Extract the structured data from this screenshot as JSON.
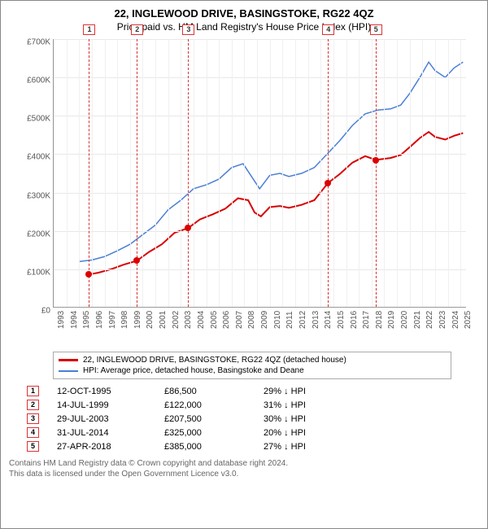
{
  "title": "22, INGLEWOOD DRIVE, BASINGSTOKE, RG22 4QZ",
  "subtitle": "Price paid vs. HM Land Registry's House Price Index (HPI)",
  "chart": {
    "type": "line",
    "background_color": "#ffffff",
    "grid_color": "#e8e8e8",
    "axis_color": "#999999",
    "label_fontsize": 10,
    "title_fontsize": 13,
    "x_years": [
      1993,
      1994,
      1995,
      1996,
      1997,
      1998,
      1999,
      2000,
      2001,
      2002,
      2003,
      2004,
      2005,
      2006,
      2007,
      2008,
      2009,
      2010,
      2011,
      2012,
      2013,
      2014,
      2015,
      2016,
      2017,
      2018,
      2019,
      2020,
      2021,
      2022,
      2023,
      2024,
      2025
    ],
    "xlim": [
      1993,
      2025.5
    ],
    "ylim": [
      0,
      700000
    ],
    "ytick_step": 100000,
    "yticks": [
      "£0",
      "£100K",
      "£200K",
      "£300K",
      "£400K",
      "£500K",
      "£600K",
      "£700K"
    ],
    "series": [
      {
        "name": "22, INGLEWOOD DRIVE, BASINGSTOKE, RG22 4QZ (detached house)",
        "color": "#d80000",
        "line_width": 2,
        "points": [
          [
            1995.78,
            86500
          ],
          [
            1996.5,
            91000
          ],
          [
            1997.5,
            100000
          ],
          [
            1998.5,
            112000
          ],
          [
            1999.54,
            122000
          ],
          [
            2000.5,
            145000
          ],
          [
            2001.5,
            165000
          ],
          [
            2002.5,
            195000
          ],
          [
            2003.58,
            207500
          ],
          [
            2004.5,
            230000
          ],
          [
            2005.5,
            243000
          ],
          [
            2006.5,
            258000
          ],
          [
            2007.5,
            285000
          ],
          [
            2008.3,
            280000
          ],
          [
            2008.8,
            248000
          ],
          [
            2009.3,
            238000
          ],
          [
            2010.0,
            262000
          ],
          [
            2010.8,
            265000
          ],
          [
            2011.5,
            260000
          ],
          [
            2012.5,
            268000
          ],
          [
            2013.5,
            280000
          ],
          [
            2014.58,
            325000
          ],
          [
            2015.5,
            348000
          ],
          [
            2016.5,
            378000
          ],
          [
            2017.5,
            395000
          ],
          [
            2018.32,
            385000
          ],
          [
            2019.0,
            388000
          ],
          [
            2019.5,
            390000
          ],
          [
            2020.3,
            398000
          ],
          [
            2021.0,
            418000
          ],
          [
            2021.8,
            442000
          ],
          [
            2022.5,
            458000
          ],
          [
            2023.0,
            445000
          ],
          [
            2023.8,
            438000
          ],
          [
            2024.5,
            448000
          ],
          [
            2025.2,
            455000
          ]
        ]
      },
      {
        "name": "HPI: Average price, detached house, Basingstoke and Deane",
        "color": "#4a7fd6",
        "line_width": 1.5,
        "points": [
          [
            1995.0,
            120000
          ],
          [
            1996.0,
            124000
          ],
          [
            1997.0,
            133000
          ],
          [
            1998.0,
            148000
          ],
          [
            1999.0,
            165000
          ],
          [
            2000.0,
            190000
          ],
          [
            2001.0,
            215000
          ],
          [
            2002.0,
            255000
          ],
          [
            2003.0,
            280000
          ],
          [
            2004.0,
            310000
          ],
          [
            2005.0,
            320000
          ],
          [
            2006.0,
            335000
          ],
          [
            2007.0,
            365000
          ],
          [
            2007.9,
            375000
          ],
          [
            2008.5,
            345000
          ],
          [
            2009.2,
            310000
          ],
          [
            2010.0,
            345000
          ],
          [
            2010.8,
            350000
          ],
          [
            2011.5,
            342000
          ],
          [
            2012.5,
            350000
          ],
          [
            2013.5,
            365000
          ],
          [
            2014.5,
            400000
          ],
          [
            2015.5,
            435000
          ],
          [
            2016.5,
            475000
          ],
          [
            2017.5,
            505000
          ],
          [
            2018.5,
            515000
          ],
          [
            2019.5,
            518000
          ],
          [
            2020.3,
            528000
          ],
          [
            2021.0,
            558000
          ],
          [
            2021.8,
            600000
          ],
          [
            2022.5,
            640000
          ],
          [
            2023.0,
            618000
          ],
          [
            2023.8,
            600000
          ],
          [
            2024.5,
            625000
          ],
          [
            2025.2,
            640000
          ]
        ]
      }
    ],
    "markers": [
      {
        "num": "1",
        "year": 1995.78,
        "value": 86500
      },
      {
        "num": "2",
        "year": 1999.54,
        "value": 122000
      },
      {
        "num": "3",
        "year": 2003.58,
        "value": 207500
      },
      {
        "num": "4",
        "year": 2014.58,
        "value": 325000
      },
      {
        "num": "5",
        "year": 2018.32,
        "value": 385000
      }
    ],
    "marker_color": "#d33333"
  },
  "sales": [
    {
      "num": "1",
      "date": "12-OCT-1995",
      "price": "£86,500",
      "pct": "29% ↓ HPI"
    },
    {
      "num": "2",
      "date": "14-JUL-1999",
      "price": "£122,000",
      "pct": "31% ↓ HPI"
    },
    {
      "num": "3",
      "date": "29-JUL-2003",
      "price": "£207,500",
      "pct": "30% ↓ HPI"
    },
    {
      "num": "4",
      "date": "31-JUL-2014",
      "price": "£325,000",
      "pct": "20% ↓ HPI"
    },
    {
      "num": "5",
      "date": "27-APR-2018",
      "price": "£385,000",
      "pct": "27% ↓ HPI"
    }
  ],
  "footnote1": "Contains HM Land Registry data © Crown copyright and database right 2024.",
  "footnote2": "This data is licensed under the Open Government Licence v3.0."
}
